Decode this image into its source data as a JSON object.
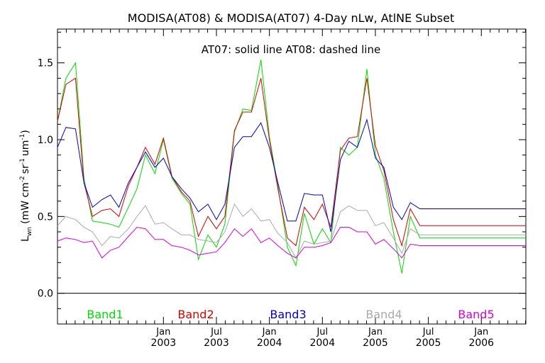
{
  "chart_data": {
    "type": "line",
    "title": "MODISA(AT08) & MODISA(AT07) 4-Day nLw, AtlNE Subset",
    "subtitle": "AT07: solid line    AT08: dashed line",
    "ylabel": "L",
    "ylabel_sub": "wn",
    "ylabel_units": "(mW cm",
    "ylabel_units_tail": "sr",
    "ylabel_units_end": "um",
    "ylabel_exp1": "-2",
    "ylabel_exp2": "-1",
    "ylabel_exp3": "-1",
    "ylabel_close": ")",
    "xlim": [
      2002.0,
      2006.42
    ],
    "ylim": [
      -0.2,
      1.72
    ],
    "yticks": [
      0.0,
      0.5,
      1.0,
      1.5
    ],
    "ytick_labels": [
      "0.0",
      "0.5",
      "1.0",
      "1.5"
    ],
    "xticks": [
      {
        "x": 2003.0,
        "top": "Jan",
        "bottom": "2003"
      },
      {
        "x": 2003.5,
        "top": "Jul",
        "bottom": "2003"
      },
      {
        "x": 2004.0,
        "top": "Jan",
        "bottom": "2004"
      },
      {
        "x": 2004.5,
        "top": "Jul",
        "bottom": "2004"
      },
      {
        "x": 2005.0,
        "top": "Jan",
        "bottom": "2005"
      },
      {
        "x": 2005.5,
        "top": "Jul",
        "bottom": "2005"
      },
      {
        "x": 2006.0,
        "top": "Jan",
        "bottom": "2006"
      }
    ],
    "zero_line": 0.0,
    "x": [
      2002.0,
      2002.08,
      2002.17,
      2002.25,
      2002.33,
      2002.42,
      2002.5,
      2002.58,
      2002.67,
      2002.75,
      2002.83,
      2002.92,
      2003.0,
      2003.08,
      2003.17,
      2003.25,
      2003.33,
      2003.42,
      2003.5,
      2003.58,
      2003.67,
      2003.75,
      2003.83,
      2003.92,
      2004.0,
      2004.08,
      2004.17,
      2004.25,
      2004.33,
      2004.42,
      2004.5,
      2004.58,
      2004.67,
      2004.75,
      2004.83,
      2004.92,
      2005.0,
      2005.08,
      2005.17,
      2005.25,
      2005.33,
      2005.42,
      2005.5,
      2005.58,
      2005.67,
      2005.75,
      2005.83,
      2005.92,
      2006.0,
      2006.08,
      2006.17,
      2006.25,
      2006.33,
      2006.42
    ],
    "series": [
      {
        "name": "Band1",
        "color": "#00dd00",
        "values": [
          1.12,
          1.4,
          1.5,
          0.75,
          0.47,
          0.46,
          0.45,
          0.43,
          0.56,
          0.68,
          0.9,
          0.78,
          1.0,
          0.75,
          0.65,
          0.58,
          0.22,
          0.38,
          0.3,
          0.45,
          1.05,
          1.2,
          1.19,
          1.52,
          1.02,
          0.7,
          0.3,
          0.18,
          0.52,
          0.32,
          0.42,
          0.33,
          0.95,
          0.9,
          0.95,
          1.46,
          0.9,
          0.75,
          0.4,
          0.13,
          0.5,
          0.36,
          0.36,
          0.36,
          0.36,
          0.36,
          0.36,
          0.36,
          0.36,
          0.36,
          0.36,
          0.36,
          0.36,
          0.36
        ]
      },
      {
        "name": "Band2",
        "color": "#dd0000",
        "values": [
          1.12,
          1.36,
          1.4,
          0.72,
          0.5,
          0.54,
          0.55,
          0.5,
          0.7,
          0.82,
          0.95,
          0.84,
          1.01,
          0.76,
          0.66,
          0.6,
          0.37,
          0.5,
          0.42,
          0.5,
          1.06,
          1.18,
          1.18,
          1.4,
          1.0,
          0.68,
          0.36,
          0.31,
          0.56,
          0.48,
          0.58,
          0.43,
          0.93,
          1.01,
          1.02,
          1.4,
          0.96,
          0.8,
          0.48,
          0.31,
          0.55,
          0.44,
          0.44,
          0.44,
          0.44,
          0.44,
          0.44,
          0.44,
          0.44,
          0.44,
          0.44,
          0.44,
          0.44,
          0.44
        ]
      },
      {
        "name": "Band3",
        "color": "#0000cc",
        "values": [
          0.95,
          1.08,
          1.07,
          0.72,
          0.56,
          0.61,
          0.64,
          0.56,
          0.72,
          0.82,
          0.92,
          0.82,
          0.88,
          0.76,
          0.68,
          0.62,
          0.53,
          0.58,
          0.48,
          0.58,
          0.95,
          1.02,
          1.02,
          1.11,
          0.95,
          0.72,
          0.47,
          0.47,
          0.65,
          0.64,
          0.64,
          0.4,
          0.87,
          0.99,
          0.95,
          1.13,
          0.88,
          0.82,
          0.56,
          0.48,
          0.59,
          0.55,
          0.55,
          0.55,
          0.55,
          0.55,
          0.55,
          0.55,
          0.55,
          0.55,
          0.55,
          0.55,
          0.55,
          0.55
        ]
      },
      {
        "name": "Band4",
        "color": "#aaaaaa",
        "values": [
          0.44,
          0.5,
          0.48,
          0.43,
          0.4,
          0.31,
          0.37,
          0.36,
          0.42,
          0.5,
          0.57,
          0.45,
          0.46,
          0.42,
          0.38,
          0.38,
          0.35,
          0.34,
          0.33,
          0.4,
          0.58,
          0.5,
          0.55,
          0.47,
          0.48,
          0.39,
          0.33,
          0.23,
          0.34,
          0.32,
          0.33,
          0.34,
          0.53,
          0.57,
          0.54,
          0.54,
          0.44,
          0.46,
          0.36,
          0.26,
          0.42,
          0.38,
          0.38,
          0.38,
          0.38,
          0.38,
          0.38,
          0.38,
          0.38,
          0.38,
          0.38,
          0.38,
          0.38,
          0.38
        ]
      },
      {
        "name": "Band5",
        "color": "#dd00dd",
        "values": [
          0.34,
          0.36,
          0.35,
          0.33,
          0.34,
          0.23,
          0.28,
          0.3,
          0.37,
          0.43,
          0.42,
          0.35,
          0.35,
          0.31,
          0.3,
          0.28,
          0.25,
          0.26,
          0.27,
          0.33,
          0.42,
          0.37,
          0.42,
          0.33,
          0.36,
          0.31,
          0.26,
          0.23,
          0.3,
          0.3,
          0.31,
          0.33,
          0.43,
          0.43,
          0.4,
          0.4,
          0.32,
          0.35,
          0.29,
          0.23,
          0.32,
          0.31,
          0.31,
          0.31,
          0.31,
          0.31,
          0.31,
          0.31,
          0.31,
          0.31,
          0.31,
          0.31,
          0.31,
          0.31
        ]
      }
    ]
  }
}
